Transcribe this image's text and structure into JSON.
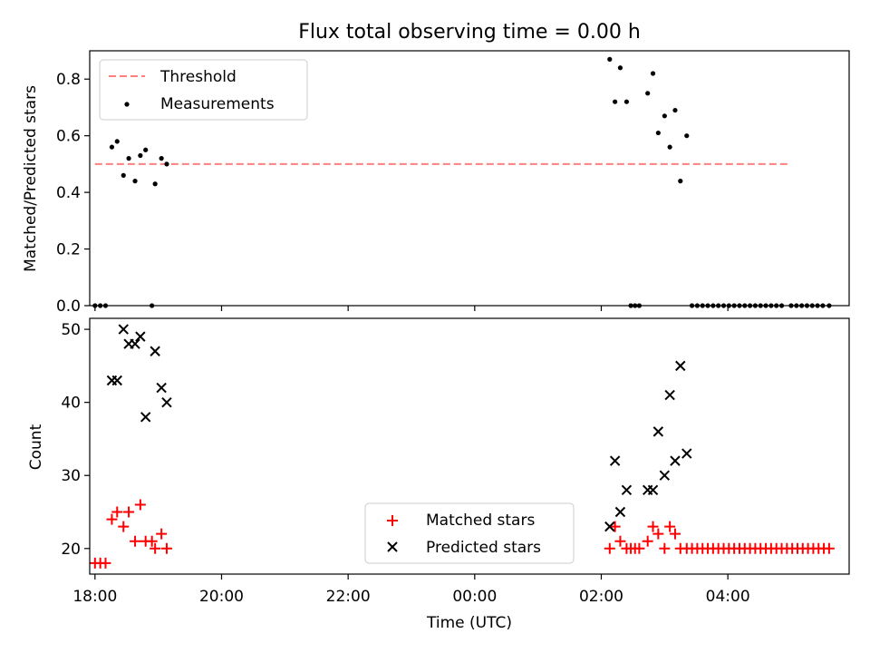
{
  "figure": {
    "title": "Flux total observing time = 0.00 h",
    "xlabel": "Time (UTC)"
  },
  "colors": {
    "threshold": "#ff7f7f",
    "measurement": "#000000",
    "matched": "#ff0000",
    "predicted": "#000000"
  },
  "chart_data": [
    {
      "type": "scatter",
      "panel": "top",
      "ylabel": "Matched/Predicted stars",
      "xlim": [
        "17:55",
        "05:55"
      ],
      "ylim": [
        0,
        0.9
      ],
      "yticks": [
        0.0,
        0.2,
        0.4,
        0.6,
        0.8
      ],
      "yticklabels": [
        "0.0",
        "0.2",
        "0.4",
        "0.6",
        "0.8"
      ],
      "legend_position": "upper left",
      "threshold": {
        "name": "Threshold",
        "value": 0.5,
        "x_range": [
          "18:00",
          "04:58"
        ],
        "style": "dashed"
      },
      "series": [
        {
          "name": "Measurements",
          "marker": "dot",
          "points": [
            [
              "18:00",
              0.0
            ],
            [
              "18:05",
              0.0
            ],
            [
              "18:10",
              0.0
            ],
            [
              "18:16",
              0.56
            ],
            [
              "18:21",
              0.58
            ],
            [
              "18:27",
              0.46
            ],
            [
              "18:32",
              0.52
            ],
            [
              "18:38",
              0.44
            ],
            [
              "18:43",
              0.53
            ],
            [
              "18:48",
              0.55
            ],
            [
              "18:54",
              0.0
            ],
            [
              "18:57",
              0.43
            ],
            [
              "19:03",
              0.52
            ],
            [
              "19:08",
              0.5
            ],
            [
              "02:08",
              0.87
            ],
            [
              "02:13",
              0.72
            ],
            [
              "02:18",
              0.84
            ],
            [
              "02:24",
              0.72
            ],
            [
              "02:28",
              0.0
            ],
            [
              "02:32",
              0.0
            ],
            [
              "02:36",
              0.0
            ],
            [
              "02:44",
              0.75
            ],
            [
              "02:49",
              0.82
            ],
            [
              "02:54",
              0.61
            ],
            [
              "03:00",
              0.67
            ],
            [
              "03:05",
              0.56
            ],
            [
              "03:10",
              0.69
            ],
            [
              "03:15",
              0.44
            ],
            [
              "03:21",
              0.6
            ],
            [
              "03:26",
              0.0
            ],
            [
              "03:31",
              0.0
            ],
            [
              "03:36",
              0.0
            ],
            [
              "03:41",
              0.0
            ],
            [
              "03:46",
              0.0
            ],
            [
              "03:51",
              0.0
            ],
            [
              "03:56",
              0.0
            ],
            [
              "04:01",
              0.0
            ],
            [
              "04:06",
              0.0
            ],
            [
              "04:11",
              0.0
            ],
            [
              "04:16",
              0.0
            ],
            [
              "04:21",
              0.0
            ],
            [
              "04:26",
              0.0
            ],
            [
              "04:31",
              0.0
            ],
            [
              "04:36",
              0.0
            ],
            [
              "04:41",
              0.0
            ],
            [
              "04:46",
              0.0
            ],
            [
              "04:51",
              0.0
            ],
            [
              "05:00",
              0.0
            ],
            [
              "05:05",
              0.0
            ],
            [
              "05:10",
              0.0
            ],
            [
              "05:15",
              0.0
            ],
            [
              "05:20",
              0.0
            ],
            [
              "05:25",
              0.0
            ],
            [
              "05:30",
              0.0
            ],
            [
              "05:36",
              0.0
            ]
          ]
        }
      ]
    },
    {
      "type": "scatter",
      "panel": "bottom",
      "ylabel": "Count",
      "xlim": [
        "17:55",
        "05:55"
      ],
      "ylim": [
        16.5,
        51.5
      ],
      "yticks": [
        20,
        30,
        40,
        50
      ],
      "yticklabels": [
        "20",
        "30",
        "40",
        "50"
      ],
      "xticks": [
        "18:00",
        "20:00",
        "22:00",
        "00:00",
        "02:00",
        "04:00"
      ],
      "xticklabels": [
        "18:00",
        "20:00",
        "22:00",
        "00:00",
        "02:00",
        "04:00"
      ],
      "legend_position": "lower center",
      "series": [
        {
          "name": "Matched stars",
          "marker": "plus",
          "points": [
            [
              "18:00",
              18
            ],
            [
              "18:05",
              18
            ],
            [
              "18:10",
              18
            ],
            [
              "18:16",
              24
            ],
            [
              "18:21",
              25
            ],
            [
              "18:27",
              23
            ],
            [
              "18:32",
              25
            ],
            [
              "18:38",
              21
            ],
            [
              "18:43",
              26
            ],
            [
              "18:48",
              21
            ],
            [
              "18:54",
              21
            ],
            [
              "18:57",
              20
            ],
            [
              "19:03",
              22
            ],
            [
              "19:08",
              20
            ],
            [
              "02:08",
              20
            ],
            [
              "02:13",
              23
            ],
            [
              "02:18",
              21
            ],
            [
              "02:24",
              20
            ],
            [
              "02:28",
              20
            ],
            [
              "02:32",
              20
            ],
            [
              "02:36",
              20
            ],
            [
              "02:44",
              21
            ],
            [
              "02:49",
              23
            ],
            [
              "02:54",
              22
            ],
            [
              "03:00",
              20
            ],
            [
              "03:05",
              23
            ],
            [
              "03:10",
              22
            ],
            [
              "03:15",
              20
            ],
            [
              "03:21",
              20
            ],
            [
              "03:26",
              20
            ],
            [
              "03:31",
              20
            ],
            [
              "03:36",
              20
            ],
            [
              "03:41",
              20
            ],
            [
              "03:46",
              20
            ],
            [
              "03:51",
              20
            ],
            [
              "03:56",
              20
            ],
            [
              "04:01",
              20
            ],
            [
              "04:06",
              20
            ],
            [
              "04:11",
              20
            ],
            [
              "04:16",
              20
            ],
            [
              "04:21",
              20
            ],
            [
              "04:26",
              20
            ],
            [
              "04:31",
              20
            ],
            [
              "04:36",
              20
            ],
            [
              "04:41",
              20
            ],
            [
              "04:46",
              20
            ],
            [
              "04:51",
              20
            ],
            [
              "04:56",
              20
            ],
            [
              "05:01",
              20
            ],
            [
              "05:06",
              20
            ],
            [
              "05:11",
              20
            ],
            [
              "05:16",
              20
            ],
            [
              "05:21",
              20
            ],
            [
              "05:26",
              20
            ],
            [
              "05:31",
              20
            ],
            [
              "05:36",
              20
            ]
          ]
        },
        {
          "name": "Predicted stars",
          "marker": "x",
          "points": [
            [
              "18:16",
              43
            ],
            [
              "18:21",
              43
            ],
            [
              "18:27",
              50
            ],
            [
              "18:32",
              48
            ],
            [
              "18:38",
              48
            ],
            [
              "18:43",
              49
            ],
            [
              "18:48",
              38
            ],
            [
              "18:57",
              47
            ],
            [
              "19:03",
              42
            ],
            [
              "19:08",
              40
            ],
            [
              "02:08",
              23
            ],
            [
              "02:13",
              32
            ],
            [
              "02:18",
              25
            ],
            [
              "02:24",
              28
            ],
            [
              "02:44",
              28
            ],
            [
              "02:49",
              28
            ],
            [
              "02:54",
              36
            ],
            [
              "03:00",
              30
            ],
            [
              "03:05",
              41
            ],
            [
              "03:10",
              32
            ],
            [
              "03:15",
              45
            ],
            [
              "03:21",
              33
            ]
          ]
        }
      ]
    }
  ]
}
